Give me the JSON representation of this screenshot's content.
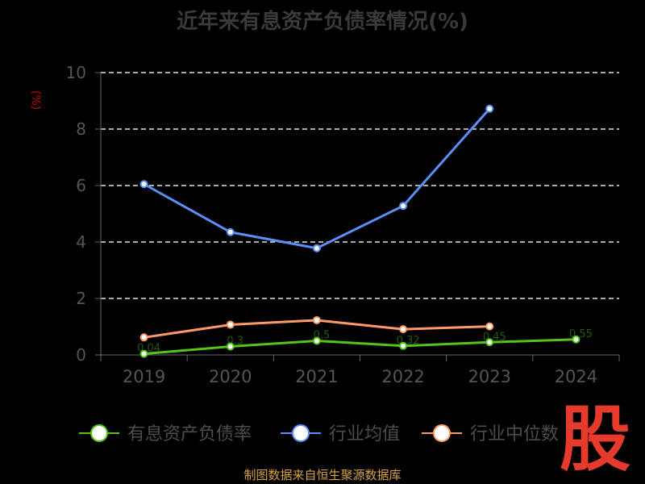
{
  "chart_data": {
    "type": "line",
    "title": "近年来有息资产负债率情况(%)",
    "ylabel": "(%)",
    "ylim": [
      0,
      10
    ],
    "yticks": [
      0,
      2,
      4,
      6,
      8,
      10
    ],
    "categories": [
      "2019",
      "2020",
      "2021",
      "2022",
      "2023",
      "2024"
    ],
    "grid": true,
    "legend": "bottom",
    "series": [
      {
        "name": "有息资产负债率",
        "color": "#52c41a",
        "values": [
          0.04,
          0.3,
          0.5,
          0.32,
          0.45,
          0.55
        ],
        "data_labels": [
          "0.04",
          "0.3",
          "0.5",
          "0.32",
          "0.45",
          "0.55"
        ]
      },
      {
        "name": "行业均值",
        "color": "#5b8ff9",
        "values": [
          6.05,
          4.35,
          3.78,
          5.28,
          8.72,
          null
        ]
      },
      {
        "name": "行业中位数",
        "color": "#ff9966",
        "values": [
          0.62,
          1.07,
          1.23,
          0.91,
          1.01,
          null
        ]
      }
    ]
  },
  "source": "制图数据来自恒生聚源数据库",
  "watermark": "股"
}
